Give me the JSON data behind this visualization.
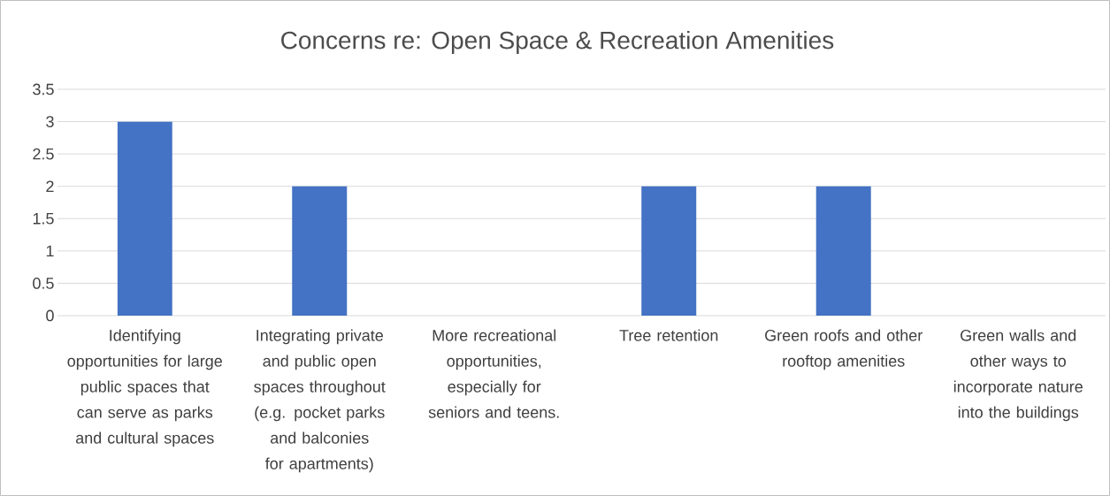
{
  "chart_data": {
    "type": "bar",
    "title": "Concerns re: Open Space & Recreation Amenities",
    "categories": [
      "Identifying opportunities for large public spaces that can serve as parks and cultural spaces",
      "Integrating private and public open spaces throughout (e.g. pocket parks and balconies for apartments)",
      "More recreational opportunities, especially for seniors and teens.",
      "Tree retention",
      "Green roofs and other rooftop amenities",
      "Green walls and other ways to incorporate nature into the buildings"
    ],
    "values": [
      3,
      2,
      0,
      2,
      2,
      0
    ],
    "color": "#4472c4",
    "ylim": [
      0,
      3.5
    ],
    "yticks": [
      0,
      0.5,
      1,
      1.5,
      2,
      2.5,
      3,
      3.5
    ],
    "grid": "y"
  }
}
